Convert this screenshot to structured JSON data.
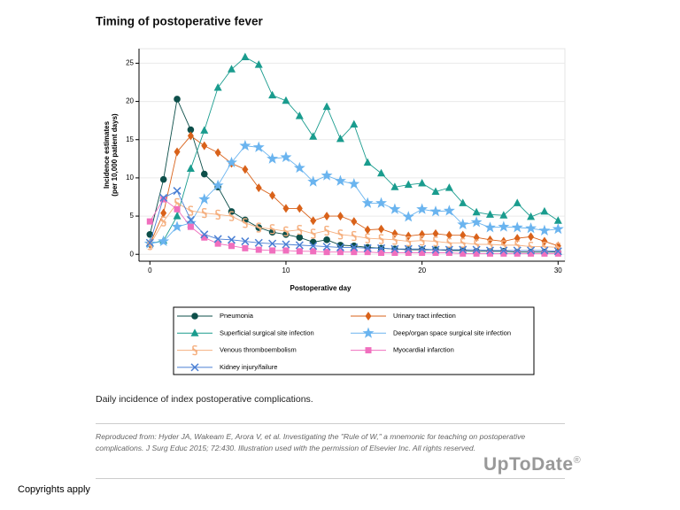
{
  "chart_data": {
    "type": "line",
    "title": "Timing of postoperative fever",
    "xlabel": "Postoperative day",
    "ylabel": [
      "Incidence estimates",
      "(per 10,000 patient days)"
    ],
    "x": [
      0,
      1,
      2,
      3,
      4,
      5,
      6,
      7,
      8,
      9,
      10,
      11,
      12,
      13,
      14,
      15,
      16,
      17,
      18,
      19,
      20,
      21,
      22,
      23,
      24,
      25,
      26,
      27,
      28,
      29,
      30
    ],
    "xlim": [
      -0.8,
      30.5
    ],
    "ylim": [
      -0.9,
      26.9
    ],
    "xticks": [
      0,
      10,
      20,
      30
    ],
    "yticks": [
      0,
      5,
      10,
      15,
      20,
      25
    ],
    "grid": true,
    "series": [
      {
        "name": "Pneumonia",
        "color": "#0d4f4a",
        "marker": "circle",
        "values": [
          2.6,
          9.8,
          20.3,
          16.3,
          10.5,
          8.8,
          5.6,
          4.5,
          3.5,
          2.9,
          2.6,
          2.2,
          1.6,
          1.9,
          1.2,
          1.1,
          0.9,
          0.8,
          0.7,
          0.6,
          0.6,
          0.6,
          0.5,
          0.5,
          0.4,
          0.4,
          0.4,
          0.3,
          0.3,
          0.3,
          0.3
        ]
      },
      {
        "name": "Urinary tract infection",
        "color": "#d9621a",
        "marker": "diamond",
        "values": [
          1.3,
          5.4,
          13.4,
          15.5,
          14.2,
          13.3,
          11.9,
          11.1,
          8.7,
          7.7,
          6,
          6,
          4.4,
          5,
          5,
          4.3,
          3.2,
          3.3,
          2.7,
          2.4,
          2.6,
          2.7,
          2.5,
          2.5,
          2.2,
          1.9,
          1.7,
          2.1,
          2.3,
          1.7,
          1.1
        ]
      },
      {
        "name": "Superficial surgical site infection",
        "color": "#1a9c8e",
        "marker": "triangle",
        "values": [
          1.4,
          1.8,
          5,
          11.2,
          16.2,
          21.8,
          24.2,
          25.8,
          24.8,
          20.8,
          20.1,
          18.1,
          15.4,
          19.3,
          15.1,
          17,
          12,
          10.6,
          8.8,
          9.1,
          9.3,
          8.2,
          8.7,
          6.7,
          5.5,
          5.2,
          5.1,
          6.7,
          4.9,
          5.6,
          4.4
        ]
      },
      {
        "name": "Deep/organ space surgical site infection",
        "color": "#6ab4ef",
        "marker": "star",
        "values": [
          1.4,
          1.7,
          3.6,
          4.1,
          7.2,
          9,
          12,
          14.2,
          14,
          12.5,
          12.7,
          11.3,
          9.5,
          10.3,
          9.6,
          9.2,
          6.7,
          6.7,
          5.9,
          4.9,
          5.9,
          5.6,
          5.7,
          3.9,
          4.2,
          3.5,
          3.6,
          3.5,
          3.4,
          3.1,
          3.3
        ]
      },
      {
        "name": "Venous thromboembolism",
        "color": "#f5b080",
        "marker": "section",
        "values": [
          1.2,
          4.3,
          6.7,
          5.7,
          5.4,
          5.2,
          5,
          4.1,
          3.5,
          3.3,
          3,
          3.2,
          2.7,
          3.1,
          2.6,
          2.4,
          2.1,
          2,
          1.9,
          1.7,
          1.8,
          1.7,
          1.5,
          1.5,
          1.3,
          1.3,
          1.2,
          1.2,
          1,
          1,
          0.9
        ]
      },
      {
        "name": "Myocardial infarction",
        "color": "#f06fbe",
        "marker": "square",
        "values": [
          4.3,
          7.2,
          5.9,
          3.6,
          2.2,
          1.4,
          1.1,
          0.8,
          0.6,
          0.5,
          0.5,
          0.4,
          0.4,
          0.3,
          0.3,
          0.3,
          0.3,
          0.2,
          0.2,
          0.2,
          0.2,
          0.2,
          0.2,
          0.1,
          0.1,
          0.1,
          0.1,
          0.1,
          0.1,
          0.1,
          0.1
        ]
      },
      {
        "name": "Kidney injury/failure",
        "color": "#4a7fd4",
        "marker": "x",
        "values": [
          1.5,
          7.4,
          8.3,
          4.5,
          2.6,
          2,
          1.9,
          1.7,
          1.5,
          1.4,
          1.3,
          1.2,
          1.1,
          1,
          0.9,
          0.9,
          0.8,
          0.8,
          0.7,
          0.7,
          0.7,
          0.6,
          0.6,
          0.6,
          0.6,
          0.5,
          0.5,
          0.5,
          0.5,
          0.5,
          0.4
        ]
      }
    ]
  },
  "document": {
    "caption": "Daily incidence of index postoperative complications.",
    "reference": "Reproduced from: Hyder JA, Wakeam E, Arora V, et al. Investigating the \"Rule of W,\" a mnemonic for teaching on postoperative complications. J Surg Educ 2015; 72:430. Illustration used with the permission of Elsevier Inc. All rights reserved.",
    "logo": "UpToDate",
    "logo_mark": "®",
    "footer": "Copyrights apply"
  }
}
